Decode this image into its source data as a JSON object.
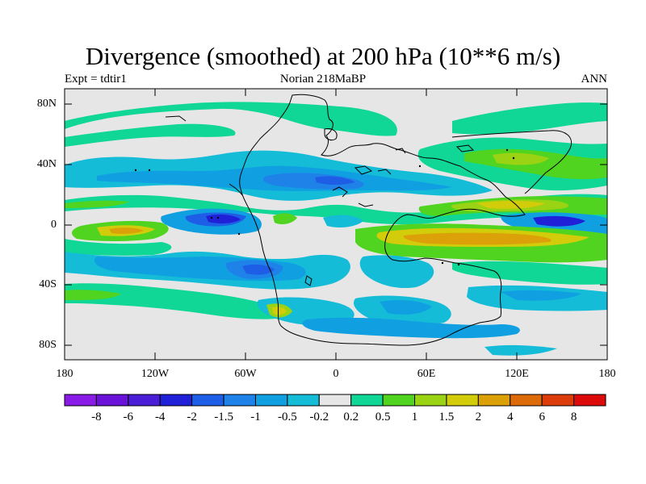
{
  "title": "Divergence (smoothed) at 200 hPa (10**6 m/s)",
  "subtitle_left": "Expt = tdtir1",
  "subtitle_center": "Norian   218MaBP",
  "subtitle_right": "ANN",
  "map": {
    "projection": "cylindrical-equidistant",
    "lon_range": [
      -180,
      180
    ],
    "lat_range": [
      -90,
      90
    ],
    "lat_tick_labels": [
      "80N",
      "40N",
      "0",
      "40S",
      "80S"
    ],
    "lon_tick_labels": [
      "180",
      "120W",
      "60W",
      "0",
      "60E",
      "120E",
      "180"
    ],
    "landmass": "Pangaea (Late Triassic supercontinent) outline"
  },
  "colorbar": {
    "labels": [
      "-8",
      "-6",
      "-4",
      "-2",
      "-1.5",
      "-1",
      "-0.5",
      "-0.2",
      "0.2",
      "0.5",
      "1",
      "1.5",
      "2",
      "4",
      "6",
      "8"
    ],
    "colors": [
      "#8a1be6",
      "#6a12d8",
      "#4a1ed6",
      "#2020d8",
      "#1e5ee6",
      "#1e82e8",
      "#10a0e2",
      "#14bcd8",
      "#e6e6e6",
      "#10d696",
      "#50d420",
      "#9ad214",
      "#d2cc0a",
      "#dca008",
      "#dc6a08",
      "#dc3c0a",
      "#dc0a0a"
    ]
  }
}
